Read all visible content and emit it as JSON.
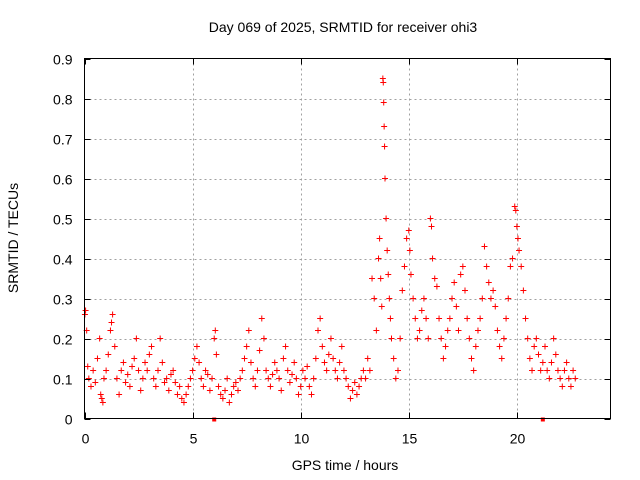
{
  "chart_data": {
    "type": "scatter",
    "title": "Day 069 of 2025, SRMTID for receiver ohi3",
    "xlabel": "GPS time / hours",
    "ylabel": "SRMTID / TECUs",
    "xlim": [
      0,
      24.33
    ],
    "ylim": [
      0,
      0.9
    ],
    "x_ticks": [
      0,
      5,
      10,
      15,
      20
    ],
    "x_tick_labels": [
      "0",
      "5",
      "10",
      "15",
      "20"
    ],
    "y_ticks": [
      0,
      0.1,
      0.2,
      0.3,
      0.4,
      0.5,
      0.6,
      0.7,
      0.8,
      0.9
    ],
    "y_tick_labels": [
      "0",
      "0.1",
      "0.2",
      "0.3",
      "0.4",
      "0.5",
      "0.6",
      "0.7",
      "0.8",
      "0.9"
    ],
    "grid": true,
    "marker": "+",
    "color": "#ff0000",
    "series": [
      {
        "name": "SRMTID",
        "points": [
          [
            0.02,
            0.26
          ],
          [
            0.05,
            0.27
          ],
          [
            0.1,
            0.22
          ],
          [
            0.15,
            0.13
          ],
          [
            0.2,
            0.1
          ],
          [
            0.3,
            0.08
          ],
          [
            0.4,
            0.12
          ],
          [
            0.5,
            0.09
          ],
          [
            0.6,
            0.15
          ],
          [
            0.7,
            0.2
          ],
          [
            0.75,
            0.06
          ],
          [
            0.8,
            0.05
          ],
          [
            0.85,
            0.04
          ],
          [
            0.9,
            0.1
          ],
          [
            1.0,
            0.12
          ],
          [
            1.1,
            0.16
          ],
          [
            1.2,
            0.22
          ],
          [
            1.25,
            0.24
          ],
          [
            1.3,
            0.26
          ],
          [
            1.4,
            0.18
          ],
          [
            1.5,
            0.1
          ],
          [
            1.6,
            0.06
          ],
          [
            1.7,
            0.12
          ],
          [
            1.8,
            0.14
          ],
          [
            1.9,
            0.09
          ],
          [
            2.0,
            0.11
          ],
          [
            2.1,
            0.08
          ],
          [
            2.2,
            0.13
          ],
          [
            2.3,
            0.15
          ],
          [
            2.4,
            0.2
          ],
          [
            2.5,
            0.12
          ],
          [
            2.6,
            0.07
          ],
          [
            2.7,
            0.1
          ],
          [
            2.8,
            0.14
          ],
          [
            2.9,
            0.12
          ],
          [
            3.0,
            0.16
          ],
          [
            3.1,
            0.18
          ],
          [
            3.2,
            0.1
          ],
          [
            3.3,
            0.08
          ],
          [
            3.4,
            0.12
          ],
          [
            3.5,
            0.2
          ],
          [
            3.6,
            0.14
          ],
          [
            3.7,
            0.09
          ],
          [
            3.8,
            0.1
          ],
          [
            3.9,
            0.07
          ],
          [
            4.0,
            0.11
          ],
          [
            4.1,
            0.12
          ],
          [
            4.2,
            0.09
          ],
          [
            4.3,
            0.06
          ],
          [
            4.4,
            0.08
          ],
          [
            4.5,
            0.05
          ],
          [
            4.6,
            0.04
          ],
          [
            4.7,
            0.06
          ],
          [
            4.8,
            0.08
          ],
          [
            4.9,
            0.1
          ],
          [
            5.0,
            0.12
          ],
          [
            5.1,
            0.15
          ],
          [
            5.2,
            0.18
          ],
          [
            5.3,
            0.14
          ],
          [
            5.4,
            0.1
          ],
          [
            5.5,
            0.08
          ],
          [
            5.6,
            0.12
          ],
          [
            5.7,
            0.11
          ],
          [
            5.8,
            0.07
          ],
          [
            5.9,
            0.1
          ],
          [
            6.0,
            0.2
          ],
          [
            6.05,
            0.22
          ],
          [
            6.1,
            0.16
          ],
          [
            6.2,
            0.08
          ],
          [
            6.3,
            0.06
          ],
          [
            6.4,
            0.05
          ],
          [
            6.5,
            0.07
          ],
          [
            6.6,
            0.1
          ],
          [
            6.7,
            0.04
          ],
          [
            6.8,
            0.06
          ],
          [
            6.9,
            0.08
          ],
          [
            7.0,
            0.09
          ],
          [
            7.1,
            0.07
          ],
          [
            7.2,
            0.1
          ],
          [
            7.3,
            0.12
          ],
          [
            7.4,
            0.15
          ],
          [
            7.5,
            0.18
          ],
          [
            7.6,
            0.22
          ],
          [
            7.7,
            0.14
          ],
          [
            7.8,
            0.1
          ],
          [
            7.9,
            0.08
          ],
          [
            8.0,
            0.12
          ],
          [
            8.1,
            0.17
          ],
          [
            8.2,
            0.25
          ],
          [
            8.3,
            0.2
          ],
          [
            8.4,
            0.12
          ],
          [
            8.5,
            0.1
          ],
          [
            8.6,
            0.08
          ],
          [
            8.7,
            0.11
          ],
          [
            8.8,
            0.14
          ],
          [
            8.9,
            0.12
          ],
          [
            9.0,
            0.1
          ],
          [
            9.1,
            0.07
          ],
          [
            9.2,
            0.15
          ],
          [
            9.3,
            0.18
          ],
          [
            9.4,
            0.12
          ],
          [
            9.5,
            0.09
          ],
          [
            9.6,
            0.11
          ],
          [
            9.7,
            0.14
          ],
          [
            9.8,
            0.1
          ],
          [
            9.9,
            0.06
          ],
          [
            10.0,
            0.08
          ],
          [
            10.1,
            0.12
          ],
          [
            10.2,
            0.1
          ],
          [
            10.3,
            0.13
          ],
          [
            10.4,
            0.08
          ],
          [
            10.5,
            0.06
          ],
          [
            10.6,
            0.1
          ],
          [
            10.7,
            0.15
          ],
          [
            10.8,
            0.22
          ],
          [
            10.9,
            0.25
          ],
          [
            11.0,
            0.18
          ],
          [
            11.1,
            0.14
          ],
          [
            11.2,
            0.12
          ],
          [
            11.3,
            0.16
          ],
          [
            11.4,
            0.2
          ],
          [
            11.5,
            0.15
          ],
          [
            11.6,
            0.12
          ],
          [
            11.7,
            0.1
          ],
          [
            11.8,
            0.14
          ],
          [
            11.9,
            0.18
          ],
          [
            12.0,
            0.12
          ],
          [
            12.1,
            0.1
          ],
          [
            12.2,
            0.08
          ],
          [
            12.3,
            0.05
          ],
          [
            12.4,
            0.07
          ],
          [
            12.5,
            0.09
          ],
          [
            12.6,
            0.06
          ],
          [
            12.7,
            0.08
          ],
          [
            12.8,
            0.1
          ],
          [
            12.9,
            0.12
          ],
          [
            13.0,
            0.1
          ],
          [
            13.1,
            0.15
          ],
          [
            13.2,
            0.12
          ],
          [
            13.3,
            0.35
          ],
          [
            13.4,
            0.3
          ],
          [
            13.5,
            0.22
          ],
          [
            13.6,
            0.4
          ],
          [
            13.65,
            0.45
          ],
          [
            13.7,
            0.35
          ],
          [
            13.75,
            0.28
          ],
          [
            13.8,
            0.85
          ],
          [
            13.82,
            0.84
          ],
          [
            13.84,
            0.79
          ],
          [
            13.86,
            0.73
          ],
          [
            13.88,
            0.68
          ],
          [
            13.9,
            0.6
          ],
          [
            13.95,
            0.5
          ],
          [
            14.0,
            0.42
          ],
          [
            14.05,
            0.36
          ],
          [
            14.1,
            0.3
          ],
          [
            14.15,
            0.25
          ],
          [
            14.2,
            0.2
          ],
          [
            14.3,
            0.15
          ],
          [
            14.4,
            0.1
          ],
          [
            14.5,
            0.12
          ],
          [
            14.6,
            0.2
          ],
          [
            14.7,
            0.32
          ],
          [
            14.8,
            0.38
          ],
          [
            14.9,
            0.45
          ],
          [
            15.0,
            0.47
          ],
          [
            15.05,
            0.42
          ],
          [
            15.1,
            0.36
          ],
          [
            15.2,
            0.3
          ],
          [
            15.3,
            0.25
          ],
          [
            15.4,
            0.2
          ],
          [
            15.5,
            0.22
          ],
          [
            15.6,
            0.27
          ],
          [
            15.7,
            0.3
          ],
          [
            15.8,
            0.25
          ],
          [
            15.9,
            0.2
          ],
          [
            16.0,
            0.5
          ],
          [
            16.05,
            0.48
          ],
          [
            16.1,
            0.4
          ],
          [
            16.2,
            0.35
          ],
          [
            16.3,
            0.33
          ],
          [
            16.4,
            0.25
          ],
          [
            16.5,
            0.2
          ],
          [
            16.6,
            0.15
          ],
          [
            16.7,
            0.18
          ],
          [
            16.8,
            0.22
          ],
          [
            16.9,
            0.25
          ],
          [
            17.0,
            0.3
          ],
          [
            17.1,
            0.34
          ],
          [
            17.2,
            0.28
          ],
          [
            17.3,
            0.22
          ],
          [
            17.4,
            0.36
          ],
          [
            17.5,
            0.38
          ],
          [
            17.6,
            0.32
          ],
          [
            17.7,
            0.25
          ],
          [
            17.8,
            0.2
          ],
          [
            17.9,
            0.15
          ],
          [
            18.0,
            0.12
          ],
          [
            18.1,
            0.18
          ],
          [
            18.2,
            0.22
          ],
          [
            18.3,
            0.25
          ],
          [
            18.4,
            0.3
          ],
          [
            18.5,
            0.43
          ],
          [
            18.6,
            0.38
          ],
          [
            18.7,
            0.34
          ],
          [
            18.8,
            0.3
          ],
          [
            18.9,
            0.32
          ],
          [
            19.0,
            0.28
          ],
          [
            19.1,
            0.22
          ],
          [
            19.2,
            0.18
          ],
          [
            19.3,
            0.15
          ],
          [
            19.4,
            0.2
          ],
          [
            19.5,
            0.25
          ],
          [
            19.6,
            0.3
          ],
          [
            19.7,
            0.38
          ],
          [
            19.8,
            0.4
          ],
          [
            19.9,
            0.53
          ],
          [
            19.95,
            0.52
          ],
          [
            20.0,
            0.48
          ],
          [
            20.05,
            0.45
          ],
          [
            20.1,
            0.42
          ],
          [
            20.2,
            0.38
          ],
          [
            20.3,
            0.32
          ],
          [
            20.4,
            0.25
          ],
          [
            20.5,
            0.2
          ],
          [
            20.6,
            0.15
          ],
          [
            20.7,
            0.12
          ],
          [
            20.8,
            0.18
          ],
          [
            20.9,
            0.2
          ],
          [
            21.0,
            0.16
          ],
          [
            21.1,
            0.12
          ],
          [
            21.2,
            0.14
          ],
          [
            21.3,
            0.18
          ],
          [
            21.4,
            0.12
          ],
          [
            21.5,
            0.1
          ],
          [
            21.6,
            0.14
          ],
          [
            21.7,
            0.2
          ],
          [
            21.8,
            0.16
          ],
          [
            21.9,
            0.12
          ],
          [
            22.0,
            0.1
          ],
          [
            22.1,
            0.08
          ],
          [
            22.2,
            0.12
          ],
          [
            22.3,
            0.14
          ],
          [
            22.4,
            0.1
          ],
          [
            22.5,
            0.08
          ],
          [
            22.6,
            0.12
          ],
          [
            22.7,
            0.1
          ]
        ]
      }
    ],
    "outliers_near_zero": [
      [
        6.0,
        0.0
      ],
      [
        21.2,
        0.0
      ]
    ]
  }
}
